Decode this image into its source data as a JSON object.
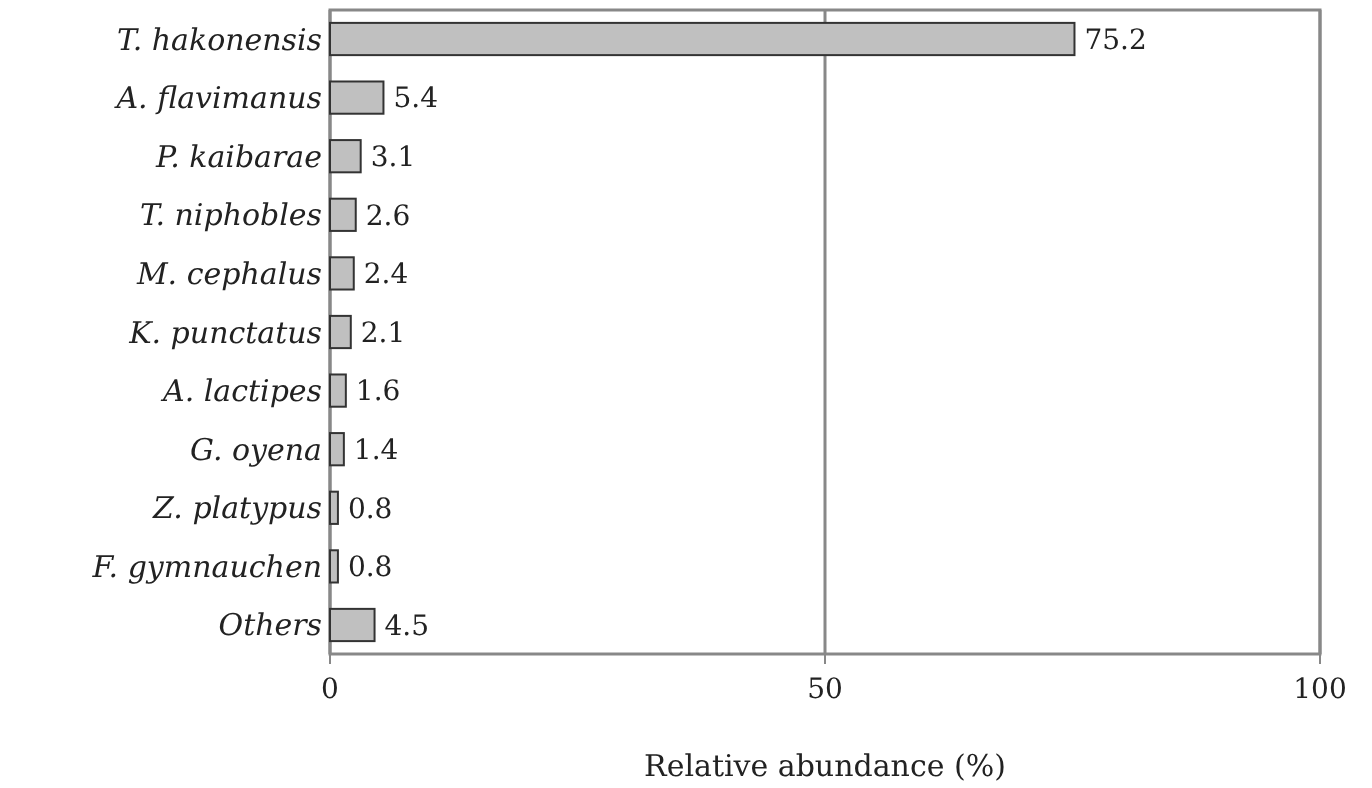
{
  "chart_data": {
    "type": "bar",
    "orientation": "horizontal",
    "categories": [
      "T. hakonensis",
      "A. flavimanus",
      "P. kaibarae",
      "T. niphobles",
      "M. cephalus",
      "K. punctatus",
      "A. lactipes",
      "G. oyena",
      "Z. platypus",
      "F. gymnauchen",
      "Others"
    ],
    "values": [
      75.2,
      5.4,
      3.1,
      2.6,
      2.4,
      2.1,
      1.6,
      1.4,
      0.8,
      0.8,
      4.5
    ],
    "color": "#c0c0c0",
    "xlim": [
      0,
      100
    ],
    "xticks": [
      0,
      50,
      100
    ],
    "grid": "x",
    "data_labels": true,
    "xlabel": "Relative abundance (%)"
  }
}
